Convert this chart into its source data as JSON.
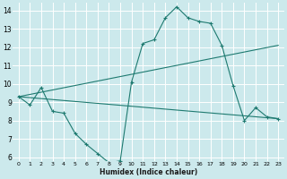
{
  "xlabel": "Humidex (Indice chaleur)",
  "bg_color": "#cce9ec",
  "grid_color": "#ffffff",
  "line_color": "#1e7a70",
  "line1_x": [
    0,
    1,
    2,
    3,
    4,
    5,
    6,
    7,
    8,
    9,
    10,
    11,
    12,
    13,
    14,
    15,
    16,
    17,
    18,
    19,
    20,
    21,
    22,
    23
  ],
  "line1_y": [
    9.3,
    8.85,
    9.8,
    8.5,
    8.4,
    7.3,
    6.7,
    6.2,
    5.7,
    5.8,
    10.1,
    12.2,
    12.4,
    13.6,
    14.2,
    13.6,
    13.4,
    13.3,
    12.1,
    9.9,
    8.0,
    8.7,
    8.2,
    8.1
  ],
  "line2_x": [
    0,
    23
  ],
  "line2_y": [
    9.3,
    12.1
  ],
  "line3_x": [
    0,
    23
  ],
  "line3_y": [
    9.3,
    8.1
  ],
  "xlim": [
    -0.5,
    23.5
  ],
  "ylim": [
    5.8,
    14.4
  ],
  "xticks": [
    0,
    1,
    2,
    3,
    4,
    5,
    6,
    7,
    8,
    9,
    10,
    11,
    12,
    13,
    14,
    15,
    16,
    17,
    18,
    19,
    20,
    21,
    22,
    23
  ],
  "yticks": [
    6,
    7,
    8,
    9,
    10,
    11,
    12,
    13,
    14
  ]
}
